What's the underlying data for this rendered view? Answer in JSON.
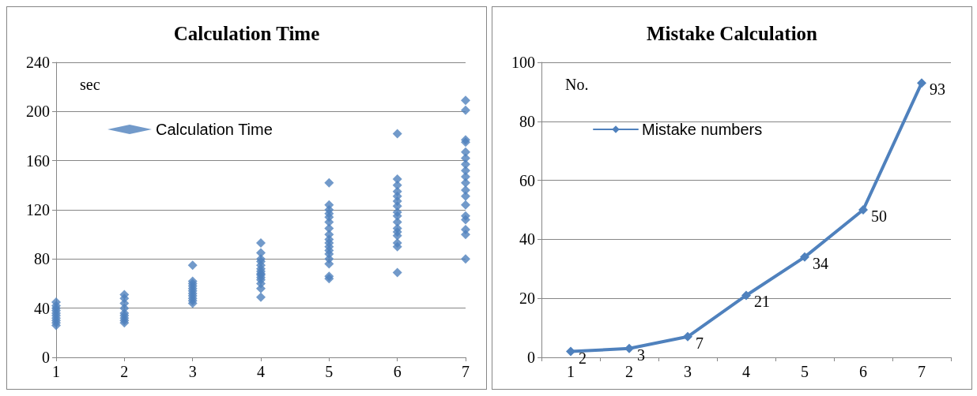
{
  "chart_data": [
    {
      "type": "scatter",
      "title": "Calculation Time",
      "ylabel": "sec",
      "x": [
        1,
        1,
        1,
        1,
        1,
        1,
        1,
        1,
        1,
        1,
        2,
        2,
        2,
        2,
        2,
        2,
        2,
        2,
        2,
        3,
        3,
        3,
        3,
        3,
        3,
        3,
        3,
        3,
        3,
        3,
        4,
        4,
        4,
        4,
        4,
        4,
        4,
        4,
        4,
        4,
        4,
        4,
        4,
        4,
        5,
        5,
        5,
        5,
        5,
        5,
        5,
        5,
        5,
        5,
        5,
        5,
        5,
        5,
        5,
        5,
        5,
        6,
        6,
        6,
        6,
        6,
        6,
        6,
        6,
        6,
        6,
        6,
        6,
        6,
        6,
        6,
        6,
        7,
        7,
        7,
        7,
        7,
        7,
        7,
        7,
        7,
        7,
        7,
        7,
        7,
        7,
        7,
        7,
        7,
        7
      ],
      "series": [
        {
          "name": "Calculation Time",
          "color": "#4f81bd",
          "values": [
            26,
            28,
            30,
            32,
            34,
            36,
            38,
            40,
            42,
            45,
            28,
            30,
            32,
            34,
            36,
            40,
            44,
            48,
            51,
            44,
            46,
            48,
            50,
            52,
            54,
            56,
            58,
            60,
            62,
            75,
            49,
            56,
            60,
            63,
            65,
            67,
            68,
            70,
            72,
            75,
            78,
            80,
            85,
            93,
            64,
            66,
            76,
            80,
            84,
            87,
            90,
            93,
            96,
            100,
            105,
            110,
            114,
            117,
            120,
            124,
            142,
            69,
            90,
            93,
            99,
            102,
            105,
            110,
            115,
            118,
            123,
            127,
            131,
            135,
            140,
            145,
            182,
            80,
            100,
            104,
            112,
            115,
            124,
            131,
            136,
            142,
            147,
            152,
            157,
            162,
            167,
            175,
            177,
            201,
            209
          ]
        }
      ],
      "xlim": [
        1,
        7
      ],
      "xticks": [
        1,
        2,
        3,
        4,
        5,
        6,
        7
      ],
      "ylim": [
        0,
        240
      ],
      "yticks": [
        0,
        40,
        80,
        120,
        160,
        200,
        240
      ],
      "grid": "y",
      "legend": "top left",
      "marker": "diamond"
    },
    {
      "type": "line",
      "title": "Mistake Calculation",
      "ylabel": "No.",
      "categories": [
        "1",
        "2",
        "3",
        "4",
        "5",
        "6",
        "7"
      ],
      "series": [
        {
          "name": "Mistake numbers",
          "color": "#4f81bd",
          "values": [
            2,
            3,
            7,
            21,
            34,
            50,
            93
          ]
        }
      ],
      "ylim": [
        0,
        100
      ],
      "yticks": [
        0,
        20,
        40,
        60,
        80,
        100
      ],
      "grid": "y",
      "legend": "top left",
      "marker": "diamond",
      "data_labels": true
    }
  ]
}
